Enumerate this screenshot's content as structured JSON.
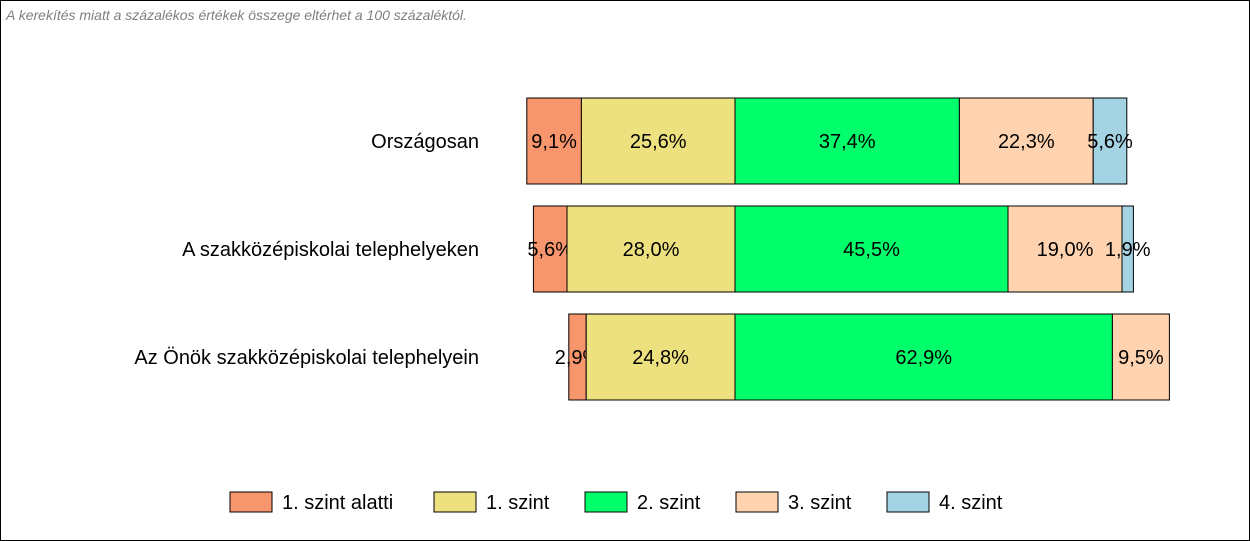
{
  "note": "A kerekítés miatt a  százalékos értékek összege eltérhet a 100 százaléktól.",
  "chart_data": {
    "type": "bar",
    "orientation": "horizontal",
    "stacked": true,
    "centered_on": "between 1. szint and 2. szint",
    "categories": [
      "Országosan",
      "A szakközépiskolai telephelyeken",
      "Az Önök szakközépiskolai telephelyein"
    ],
    "series": [
      {
        "name": "1. szint alatti",
        "color": "#f7956d",
        "values": [
          9.1,
          5.6,
          2.9
        ],
        "labels": [
          "9,1%",
          "5,6%",
          "2,9%"
        ]
      },
      {
        "name": "1. szint",
        "color": "#ede07f",
        "values": [
          25.6,
          28.0,
          24.8
        ],
        "labels": [
          "25,6%",
          "28,0%",
          "24,8%"
        ]
      },
      {
        "name": "2. szint",
        "color": "#00ff6a",
        "values": [
          37.4,
          45.5,
          62.9
        ],
        "labels": [
          "37,4%",
          "45,5%",
          "62,9%"
        ]
      },
      {
        "name": "3. szint",
        "color": "#ffd3b0",
        "values": [
          22.3,
          19.0,
          9.5
        ],
        "labels": [
          "22,3%",
          "19,0%",
          "9,5%"
        ]
      },
      {
        "name": "4. szint",
        "color": "#a4d4e3",
        "values": [
          5.6,
          1.9,
          0.0
        ],
        "labels": [
          "5,6%",
          "1,9%",
          ""
        ]
      }
    ],
    "legend_position": "bottom"
  }
}
